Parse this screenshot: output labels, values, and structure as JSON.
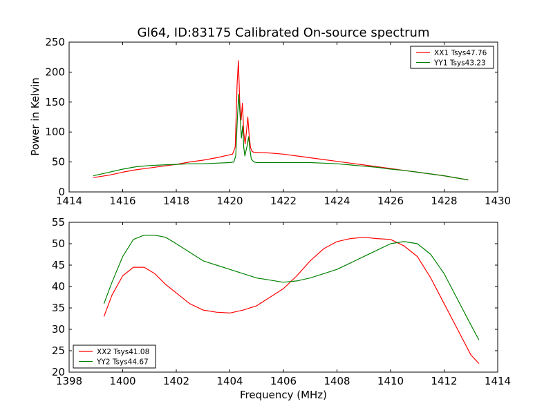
{
  "figure": {
    "title": "Gl64, ID:83175 Calibrated On-source spectrum"
  },
  "chart_data": [
    {
      "type": "line",
      "ylabel": "Power in Kelvin",
      "xlabel": "",
      "xlim": [
        1414,
        1430
      ],
      "ylim": [
        0,
        250
      ],
      "xticks": [
        1414,
        1416,
        1418,
        1420,
        1422,
        1424,
        1426,
        1428,
        1430
      ],
      "yticks": [
        0,
        50,
        100,
        150,
        200,
        250
      ],
      "legend_position": "top-right",
      "series": [
        {
          "name": "XX1 Tsys47.76",
          "color": "#ff0000",
          "x": [
            1414.9,
            1415.5,
            1416.0,
            1416.5,
            1417.0,
            1417.5,
            1418.0,
            1418.5,
            1419.0,
            1419.5,
            1419.9,
            1420.1,
            1420.2,
            1420.27,
            1420.32,
            1420.37,
            1420.42,
            1420.47,
            1420.52,
            1420.57,
            1420.62,
            1420.67,
            1420.72,
            1420.77,
            1420.82,
            1420.9,
            1421.0,
            1421.5,
            1422.0,
            1422.5,
            1423.0,
            1423.5,
            1424.0,
            1424.5,
            1425.0,
            1425.5,
            1426.0,
            1426.5,
            1427.0,
            1427.5,
            1428.0,
            1428.5,
            1428.9
          ],
          "y": [
            24,
            28,
            33,
            37,
            40,
            43,
            46,
            50,
            53,
            57,
            61,
            63,
            75,
            180,
            219,
            150,
            120,
            148,
            100,
            80,
            100,
            125,
            95,
            75,
            68,
            66,
            66,
            65,
            63,
            60,
            57,
            54,
            51,
            48,
            45,
            42,
            39,
            36,
            33,
            30,
            27,
            23,
            20
          ]
        },
        {
          "name": "YY1 Tsys43.23",
          "color": "#008000",
          "x": [
            1414.9,
            1415.5,
            1416.0,
            1416.5,
            1417.0,
            1417.5,
            1418.0,
            1418.5,
            1419.0,
            1419.5,
            1420.0,
            1420.15,
            1420.22,
            1420.28,
            1420.33,
            1420.38,
            1420.43,
            1420.48,
            1420.52,
            1420.56,
            1420.6,
            1420.65,
            1420.7,
            1420.75,
            1420.8,
            1420.9,
            1421.0,
            1421.5,
            1422.0,
            1422.5,
            1423.0,
            1423.5,
            1424.0,
            1424.5,
            1425.0,
            1425.5,
            1426.0,
            1426.5,
            1427.0,
            1427.5,
            1428.0,
            1428.5,
            1428.9
          ],
          "y": [
            27,
            33,
            38,
            42,
            44,
            45,
            46,
            47,
            47,
            48,
            49,
            50,
            60,
            120,
            163,
            130,
            90,
            110,
            75,
            60,
            68,
            78,
            92,
            70,
            55,
            50,
            49,
            49,
            49,
            49,
            49,
            48,
            47,
            45,
            43,
            41,
            38,
            36,
            33,
            30,
            27,
            23,
            20
          ]
        }
      ]
    },
    {
      "type": "line",
      "ylabel": "",
      "xlabel": "Frequency (MHz)",
      "xlim": [
        1398,
        1414
      ],
      "ylim": [
        20,
        55
      ],
      "xticks": [
        1398,
        1400,
        1402,
        1404,
        1406,
        1408,
        1410,
        1412,
        1414
      ],
      "yticks": [
        20,
        25,
        30,
        35,
        40,
        45,
        50,
        55
      ],
      "legend_position": "bottom-left",
      "series": [
        {
          "name": "XX2 Tsys41.08",
          "color": "#ff0000",
          "x": [
            1399.3,
            1399.6,
            1400.0,
            1400.4,
            1400.8,
            1401.2,
            1401.6,
            1402.0,
            1402.5,
            1403.0,
            1403.5,
            1404.0,
            1404.5,
            1405.0,
            1405.5,
            1406.0,
            1406.5,
            1407.0,
            1407.5,
            1408.0,
            1408.5,
            1409.0,
            1409.5,
            1410.0,
            1410.5,
            1411.0,
            1411.5,
            1412.0,
            1412.5,
            1413.0,
            1413.3
          ],
          "y": [
            33,
            38,
            42.5,
            44.5,
            44.5,
            43,
            40.5,
            38.5,
            36,
            34.5,
            34,
            33.8,
            34.5,
            35.5,
            37.5,
            39.5,
            42.5,
            46,
            48.8,
            50.5,
            51.2,
            51.5,
            51.2,
            51,
            49.5,
            47,
            42,
            36,
            30,
            24,
            22
          ]
        },
        {
          "name": "YY2 Tsys44.67",
          "color": "#008000",
          "x": [
            1399.3,
            1399.6,
            1400.0,
            1400.4,
            1400.8,
            1401.2,
            1401.6,
            1402.0,
            1402.5,
            1403.0,
            1403.5,
            1404.0,
            1404.5,
            1405.0,
            1405.5,
            1406.0,
            1406.5,
            1407.0,
            1407.5,
            1408.0,
            1408.5,
            1409.0,
            1409.5,
            1410.0,
            1410.5,
            1411.0,
            1411.5,
            1412.0,
            1412.5,
            1413.0,
            1413.3
          ],
          "y": [
            36,
            41,
            47,
            51,
            52,
            52,
            51.5,
            50,
            48,
            46,
            45,
            44,
            43,
            42,
            41.5,
            41,
            41.3,
            42,
            43,
            44,
            45.5,
            47,
            48.5,
            50,
            50.5,
            50,
            47.5,
            43,
            37,
            31,
            27.5
          ]
        }
      ]
    }
  ]
}
